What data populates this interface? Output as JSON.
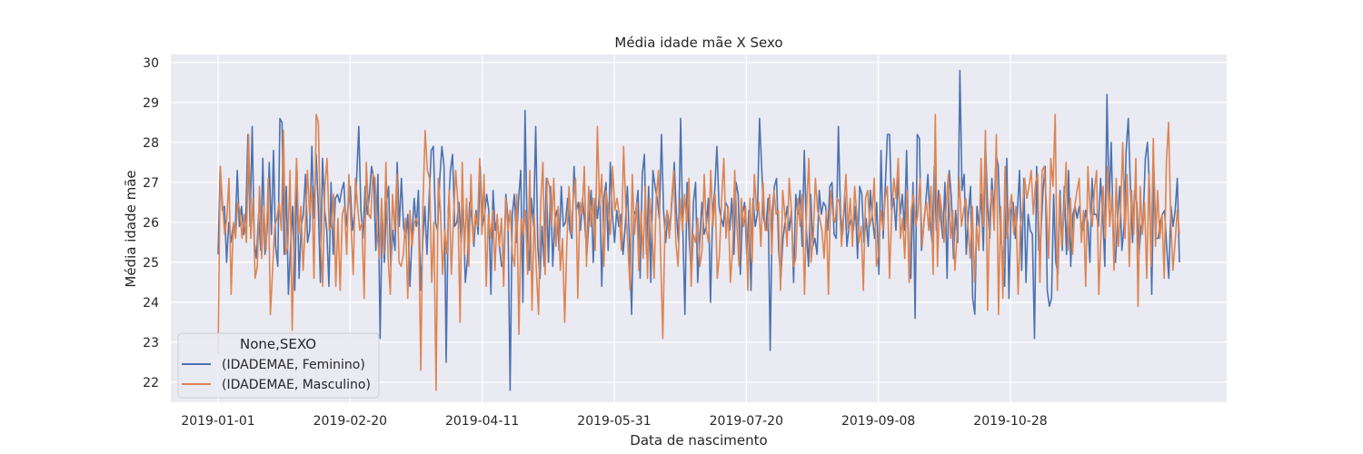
{
  "chart_data": {
    "type": "line",
    "title": "Média idade mãe X Sexo",
    "xlabel": "Data de nascimento",
    "ylabel": "Média idade mãe",
    "x_range": [
      "2019-01-01",
      "2019-12-31"
    ],
    "x_ticks": [
      "2019-01-01",
      "2019-02-20",
      "2019-04-11",
      "2019-05-31",
      "2019-07-20",
      "2019-09-08",
      "2019-10-28"
    ],
    "ylim": [
      21.5,
      30.2
    ],
    "y_ticks": [
      22,
      23,
      24,
      25,
      26,
      27,
      28,
      29,
      30
    ],
    "grid": true,
    "legend": {
      "title": "None,SEXO",
      "placement": "lower-left"
    },
    "colors": {
      "background": "#eaeaf2",
      "grid": "#ffffff"
    },
    "series": [
      {
        "name": "(IDADEMAE, Feminino)",
        "color": "#4c72b0",
        "values": [
          25.2,
          27.4,
          26.3,
          26.4,
          25,
          26,
          25.5,
          25.9,
          25.7,
          27.3,
          25.9,
          26.4,
          25.7,
          26.1,
          28.2,
          25.9,
          28.4,
          25.5,
          25.1,
          26.2,
          25.3,
          27.6,
          25.2,
          25.8,
          27.5,
          25.7,
          27.8,
          25.4,
          24.9,
          28.6,
          28.5,
          25.2,
          26.9,
          24.2,
          25.4,
          26.4,
          24.3,
          27.3,
          24.6,
          25.9,
          26.2,
          27.2,
          25.5,
          25.8,
          27.9,
          26.1,
          27.7,
          26.4,
          24.5,
          27.6,
          26.3,
          25.8,
          24.4,
          27,
          25.2,
          26.6,
          26.7,
          26.5,
          26.8,
          27,
          25.9,
          26.4,
          26.9,
          25.8,
          26.2,
          27.1,
          28.4,
          26.3,
          25.6,
          26.9,
          26.2,
          26.7,
          27.4,
          27.1,
          25.3,
          27.2,
          23.1,
          26.1,
          25,
          26.5,
          26.9,
          24.9,
          25.8,
          25.3,
          27.5,
          25.9,
          27.1,
          25.9,
          25.6,
          26.2,
          24.4,
          25.7,
          26.6,
          25.9,
          26.8,
          24.3,
          25.5,
          26.4,
          25.2,
          26.6,
          27.8,
          27.9,
          26,
          25.8,
          27.1,
          27.9,
          27.4,
          22.5,
          26.3,
          27.3,
          27.7,
          25.9,
          26,
          26.5,
          25.5,
          26.4,
          24.5,
          25.1,
          26.5,
          26.1,
          25.4,
          26.3,
          25.7,
          27.4,
          25.9,
          26.2,
          26.7,
          26.3,
          24.2,
          26.8,
          25.8,
          26.1,
          25.4,
          24.9,
          25,
          26.7,
          26.1,
          21.8,
          26.2,
          26.7,
          25.5,
          26.6,
          27.3,
          24,
          28.8,
          25.8,
          24.8,
          26.6,
          25.9,
          28.4,
          25.4,
          24.6,
          25.9,
          24.9,
          27.1,
          25,
          26.9,
          24.9,
          26.1,
          26.3,
          25.3,
          26.9,
          25.9,
          26,
          26.6,
          25.8,
          25.6,
          27.4,
          26.3,
          26.5,
          25.8,
          26.6,
          26,
          25.2,
          26.1,
          26.8,
          25,
          26.6,
          26.1,
          26.8,
          24.4,
          26.6,
          27,
          25.3,
          27.5,
          26.2,
          25.5,
          26.3,
          25.9,
          26.2,
          25.2,
          25.9,
          26.9,
          25.5,
          23.7,
          26.2,
          26.3,
          26.8,
          24.6,
          27.2,
          27.7,
          25.2,
          26.9,
          24.5,
          27.3,
          26.9,
          26.6,
          26.1,
          28.2,
          26.3,
          25.5,
          26.2,
          25.8,
          26.6,
          27.5,
          26.2,
          25.5,
          28.6,
          25.9,
          23.7,
          27,
          25.6,
          24.7,
          26.5,
          27,
          24.5,
          25.6,
          26.5,
          25.7,
          25.9,
          26.6,
          24,
          26.2,
          26.8,
          27.9,
          26.4,
          26.1,
          25.9,
          26.5,
          26.4,
          25.8,
          26.6,
          25.2,
          27,
          26.7,
          24.7,
          26.2,
          26.5,
          25.2,
          26.3,
          24.3,
          26.6,
          25.9,
          26.2,
          28.6,
          27.4,
          26.1,
          25.8,
          26.6,
          22.8,
          26.3,
          26.9,
          27.1,
          25.3,
          24.6,
          25.6,
          26,
          26.4,
          25.8,
          26.3,
          24.5,
          26.7,
          26.2,
          26.8,
          25.4,
          27.8,
          25.8,
          24.9,
          26.7,
          25.4,
          25.6,
          25.2,
          26.8,
          26.2,
          26.5,
          26.4,
          25.8,
          26.9,
          27,
          25.7,
          25.6,
          28.4,
          26.2,
          25.7,
          26.7,
          25.4,
          25.9,
          26.1,
          25.8,
          26.4,
          25.1,
          26.9,
          26.7,
          25.5,
          26.1,
          25.4,
          26.8,
          26.1,
          25.6,
          26.5,
          24.7,
          27.8,
          25.6,
          26.9,
          28.2,
          28.2,
          26.3,
          26.6,
          25.8,
          27.1,
          26.2,
          26.7,
          25.8,
          27.8,
          25.2,
          24.6,
          27,
          23.6,
          28.2,
          28.1,
          25.3,
          25.9,
          26.5,
          27.2,
          26,
          25.5,
          27.4,
          25.8,
          26.8,
          26.1,
          25.6,
          27,
          24.6,
          27.3,
          26.6,
          25.1,
          26.3,
          25.5,
          29.8,
          26.8,
          27.2,
          25.2,
          26.2,
          26.9,
          24.1,
          23.7,
          26.4,
          25.9,
          26.7,
          25.3,
          28,
          26.4,
          25.6,
          27.1,
          26.2,
          27.7,
          27.4,
          25.7,
          25.2,
          24.4,
          27.6,
          24.1,
          26.3,
          26.5,
          25.6,
          26.3,
          27.3,
          24.8,
          27.1,
          24.5,
          26.2,
          25.8,
          25.7,
          23.1,
          27.4,
          25.3,
          25.7,
          26.8,
          27.4,
          24.3,
          23.9,
          24.1,
          26.7,
          25,
          24.7,
          26.8,
          25.3,
          26.9,
          25.2,
          27.3,
          24.9,
          26.2,
          26.4,
          26.1,
          26.4,
          25.9,
          25.8,
          26.3,
          26,
          25,
          27.1,
          26.2,
          26.2,
          25.9,
          27.1,
          26.2,
          24.9,
          29.2,
          26.4,
          28,
          25.6,
          25,
          26.1,
          26.9,
          25.3,
          25.9,
          27.8,
          28.6,
          26.9,
          25.5,
          26.8,
          26.5,
          25.2,
          25.9,
          26.1,
          27.6,
          28,
          26.8,
          24.2,
          27.3,
          25.6,
          25.6,
          26,
          26.2,
          26.3,
          25.4,
          24.6,
          26.4,
          25.9,
          26.3,
          27.1,
          25
        ],
        "dates_start": "2019-01-01"
      },
      {
        "name": "(IDADEMAE, Masculino)",
        "color": "#dd8452",
        "values": [
          22.7,
          27.4,
          26.5,
          25.7,
          26.1,
          27.1,
          24.2,
          26,
          25.6,
          26.5,
          26.3,
          25.6,
          26.2,
          25.5,
          28.2,
          25.6,
          26.6,
          24.6,
          24.9,
          26.9,
          25.1,
          26.4,
          25.3,
          27.1,
          23.7,
          24.8,
          25.9,
          26.1,
          26.5,
          25.8,
          28.3,
          25.2,
          25.4,
          27.3,
          23.3,
          25.9,
          27.6,
          25.7,
          26.4,
          24.8,
          25.9,
          27.3,
          26.2,
          26.9,
          24.6,
          28.7,
          28.5,
          25.7,
          24.4,
          26.9,
          27.6,
          25.8,
          25.9,
          26.7,
          24.4,
          26.1,
          24.3,
          26.2,
          26.4,
          25.2,
          27.2,
          25.9,
          24.7,
          27.1,
          26.4,
          25.8,
          26,
          24.1,
          27.5,
          26.2,
          26.1,
          27.2,
          27.1,
          25.7,
          25.1,
          26.6,
          25.2,
          27.5,
          25.1,
          24.2,
          26.7,
          25.8,
          27.2,
          25,
          24.9,
          25.2,
          26.1,
          24.1,
          26.3,
          25.4,
          26,
          26.1,
          25.9,
          22.3,
          26.5,
          28.3,
          27.3,
          27.1,
          24.5,
          26,
          21.8,
          27.1,
          26.3,
          24.7,
          25.8,
          25.2,
          26.8,
          24.7,
          26.1,
          27.3,
          26.5,
          23.5,
          27.5,
          25.2,
          26.6,
          24.9,
          27.2,
          25.5,
          26.2,
          25.9,
          27.6,
          25.7,
          27.2,
          24.4,
          26.2,
          25.6,
          26.3,
          24.8,
          26.2,
          25.4,
          26.1,
          24.4,
          26.6,
          25.8,
          26.3,
          25.2,
          24.9,
          26.7,
          23.2,
          26.1,
          25.7,
          26.3,
          24.7,
          27.3,
          23.8,
          26.2,
          24.8,
          23.7,
          26.5,
          27.5,
          24.7,
          27.1,
          26.9,
          25.9,
          27.1,
          25.4,
          26.4,
          24.8,
          25.6,
          23.5,
          25.5,
          26.9,
          25.7,
          26.7,
          27.1,
          24.1,
          26.5,
          26.2,
          27.4,
          24.9,
          26.9,
          25.9,
          26.6,
          25.3,
          28.4,
          26.4,
          27.2,
          24.9,
          26.8,
          26.3,
          25.7,
          27.4,
          26.3,
          26.6,
          26.2,
          25.3,
          27.9,
          26.4,
          25.4,
          24.3,
          27.2,
          25.7,
          26.5,
          24.8,
          26.3,
          25.1,
          26.9,
          24.6,
          26.6,
          25.9,
          24.6,
          26.6,
          27.3,
          25.2,
          23.1,
          25.9,
          26.3,
          25.6,
          26.5,
          27.3,
          25.5,
          24.9,
          26.6,
          25.8,
          26.7,
          26,
          27.1,
          24.4,
          25.7,
          25.5,
          26.1,
          24.9,
          25.3,
          27.2,
          25.8,
          25.5,
          27.3,
          25.9,
          26.7,
          24.6,
          25.2,
          26.6,
          27.6,
          25.6,
          26.4,
          24.5,
          25.3,
          27.3,
          25.9,
          24.9,
          26.6,
          25.9,
          26.4,
          24.3,
          26.6,
          25,
          27.2,
          26.3,
          26.5,
          25.4,
          27,
          25.8,
          25.8,
          26.7,
          25.2,
          26.8,
          26.2,
          26.3,
          24.3,
          26.8,
          26.2,
          25.4,
          27.1,
          26.3,
          24.9,
          25.1,
          26.6,
          25.9,
          26.7,
          24.2,
          26.4,
          27.6,
          25,
          25.6,
          27.1,
          26.3,
          26.1,
          25.8,
          25.1,
          26.3,
          24.2,
          26.8,
          26.2,
          26,
          26.6,
          26.5,
          25.4,
          26.3,
          27.2,
          25.8,
          26.6,
          25.4,
          26.9,
          26.2,
          25.5,
          25.9,
          24.3,
          26.6,
          26.8,
          25.9,
          26.2,
          27.1,
          24.9,
          25.2,
          26.3,
          25.8,
          26.6,
          26.9,
          24.6,
          26.2,
          27.1,
          26.6,
          27.6,
          25.6,
          26.1,
          25.1,
          26.8,
          24.5,
          26.3,
          26.7,
          25.9,
          26.2,
          27.1,
          25.4,
          26.2,
          26.5,
          25.8,
          26.9,
          24.7,
          28.7,
          24.9,
          26.7,
          26.3,
          25.5,
          26.4,
          27.2,
          25.6,
          26.3,
          24.8,
          25.7,
          27.1,
          25.9,
          26.3,
          26.6,
          25.9,
          25.1,
          26.4,
          24.5,
          25.9,
          25.3,
          27.6,
          25.9,
          28.3,
          23.8,
          26.3,
          26.8,
          25.8,
          28.2,
          23.7,
          26.4,
          24.1,
          27.4,
          25.6,
          26.3,
          26.7,
          25.7,
          26.4,
          24.2,
          25.9,
          26.3,
          27.1,
          26.6,
          26.9,
          27.3,
          26.2,
          27,
          27.2,
          24.5,
          27.3,
          27.4,
          26.4,
          25.1,
          27.6,
          26.9,
          28.7,
          24.3,
          26.7,
          25.4,
          26.2,
          27.5,
          25.3,
          26.6,
          25.2,
          26.4,
          26.8,
          27.1,
          25.5,
          26.3,
          24.4,
          27.4,
          26.3,
          25.9,
          26.8,
          27.3,
          24.2,
          25.7,
          26.9,
          25.6,
          27.4,
          25.9,
          26.7,
          24.8,
          27.1,
          25.4,
          26.3,
          28,
          25.6,
          27.2,
          24.9,
          26.8,
          25.7,
          27.6,
          23.9,
          26.9,
          25.7,
          26.5,
          24.6,
          27.2,
          24.9,
          28.1,
          25.4,
          26.8,
          25.6,
          26.2,
          24.6,
          27.5,
          28.5,
          26.1,
          24.8,
          25.5,
          26.3,
          25.7
        ],
        "dates_start": "2019-01-01"
      }
    ]
  }
}
